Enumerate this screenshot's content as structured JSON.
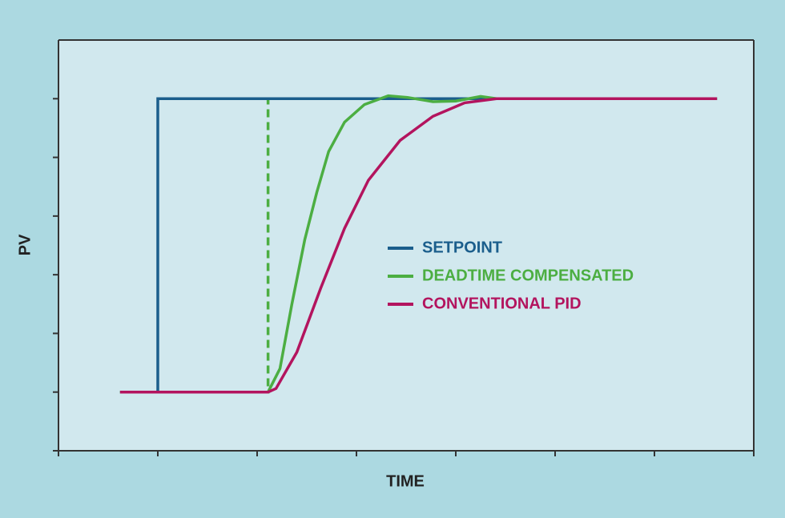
{
  "chart_data": {
    "type": "line",
    "x_label": "TIME",
    "y_label": "PV",
    "xlim": [
      0,
      7
    ],
    "xticks": [
      0,
      1,
      2,
      3,
      4,
      5,
      6,
      7
    ],
    "ylim": [
      0,
      7
    ],
    "yticks": [
      0,
      1,
      2,
      3,
      4,
      5,
      6
    ],
    "legend": "center",
    "series": [
      {
        "name": "SETPOINT",
        "color": "#1b5e8c",
        "x": [
          0.62,
          1,
          1,
          6.63
        ],
        "values": [
          1,
          1,
          6,
          6
        ]
      },
      {
        "name": "DEADTIME COMPENSATED",
        "color": "#4cae42",
        "x": [
          0.62,
          2.11,
          2.23,
          2.35,
          2.48,
          2.6,
          2.72,
          2.88,
          3.08,
          3.32,
          3.52,
          3.77,
          4.0,
          4.25,
          4.41,
          6.63
        ],
        "values": [
          1,
          1,
          1.4,
          2.5,
          3.6,
          4.4,
          5.1,
          5.6,
          5.9,
          6.05,
          6.02,
          5.95,
          5.96,
          6.04,
          6,
          6
        ]
      },
      {
        "name": "CONVENTIONAL PID",
        "color": "#b3145e",
        "x": [
          0.62,
          2.11,
          2.19,
          2.4,
          2.64,
          2.88,
          3.12,
          3.44,
          3.77,
          4.09,
          4.41,
          6.63
        ],
        "values": [
          1,
          1,
          1.06,
          1.68,
          2.77,
          3.79,
          4.61,
          5.29,
          5.7,
          5.93,
          6,
          6
        ]
      },
      {
        "color": "#4cae42",
        "dash": true,
        "x": [
          0.62,
          2.11,
          2.11,
          6.63
        ],
        "values": [
          1,
          1,
          6,
          6
        ]
      }
    ]
  }
}
